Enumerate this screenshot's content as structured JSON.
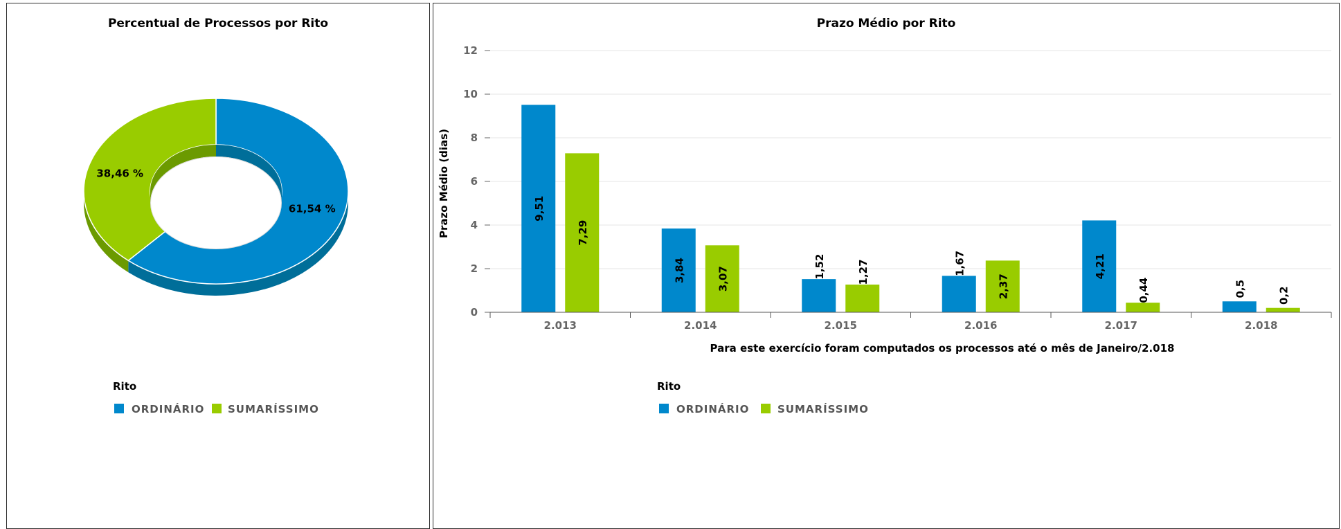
{
  "colors": {
    "ordinario": "#0088cc",
    "sumarissimo": "#99cc00",
    "ordinario_dark": "#006e99",
    "sumarissimo_dark": "#6b9a00"
  },
  "chart_data": [
    {
      "type": "pie",
      "title": "Percentual de Processos por Rito",
      "slices": [
        {
          "name": "ORDINÁRIO",
          "value": 61.54,
          "label": "61,54 %"
        },
        {
          "name": "SUMARÍSSIMO",
          "value": 38.46,
          "label": "38,46 %"
        }
      ],
      "legend": {
        "title": "Rito",
        "placement": "bottom-center",
        "items": [
          "ORDINÁRIO",
          "SUMARÍSSIMO"
        ]
      }
    },
    {
      "type": "bar",
      "title": "Prazo Médio por Rito",
      "xlabel": "Para este exercício foram computados os processos até o mês de Janeiro/2.018",
      "ylabel": "Prazo Médio (dias)",
      "ylim": [
        0,
        12
      ],
      "yticks": [
        0,
        2,
        4,
        6,
        8,
        10,
        12
      ],
      "grid": true,
      "categories": [
        "2.013",
        "2.014",
        "2.015",
        "2.016",
        "2.017",
        "2.018"
      ],
      "series": [
        {
          "name": "ORDINÁRIO",
          "values": [
            9.51,
            3.84,
            1.52,
            1.67,
            4.21,
            0.5
          ],
          "labels": [
            "9,51",
            "3,84",
            "1,52",
            "1,67",
            "4,21",
            "0,5"
          ]
        },
        {
          "name": "SUMARÍSSIMO",
          "values": [
            7.29,
            3.07,
            1.27,
            2.37,
            0.44,
            0.2
          ],
          "labels": [
            "7,29",
            "3,07",
            "1,27",
            "2,37",
            "0,44",
            "0,2"
          ]
        }
      ],
      "legend": {
        "title": "Rito",
        "placement": "bottom-center",
        "items": [
          "ORDINÁRIO",
          "SUMARÍSSIMO"
        ]
      }
    }
  ]
}
